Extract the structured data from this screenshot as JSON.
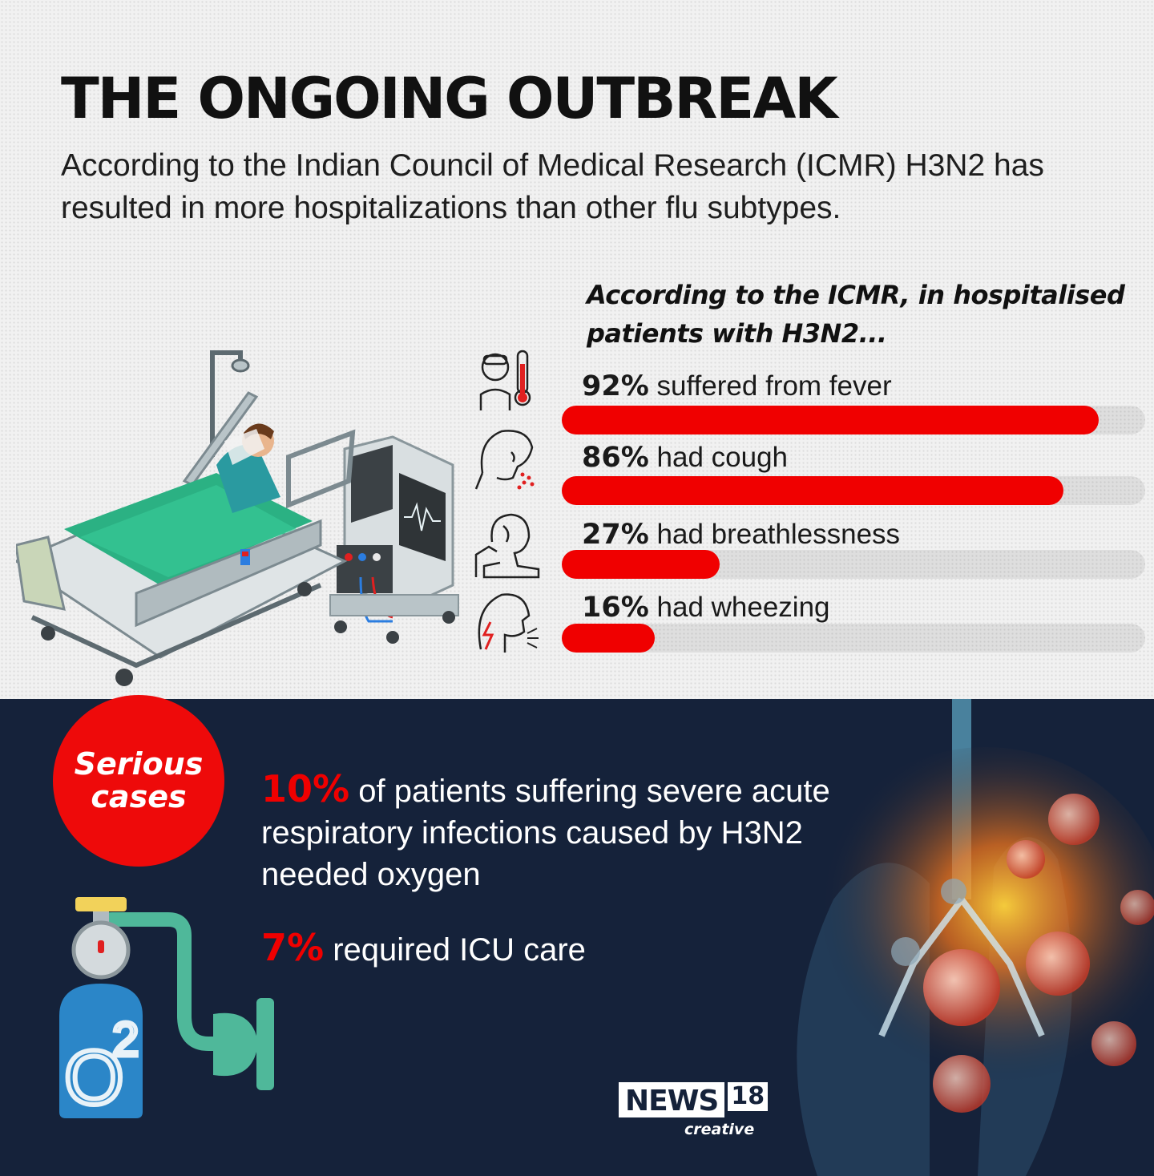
{
  "title": "THE ONGOING OUTBREAK",
  "subtitle": "According to the Indian Council of Medical Research (ICMR) H3N2 has resulted in more hospitalizations than other flu subtypes.",
  "intro": "According to the ICMR, in hospitalised patients with H3N2...",
  "icons": [
    "thermometer-icon",
    "cough-icon",
    "breathlessness-icon",
    "wheezing-icon"
  ],
  "colors": {
    "accent": "#f00000",
    "track": "#dedede",
    "dark_bg": "#15223a"
  },
  "chart_data": {
    "type": "bar",
    "orientation": "horizontal",
    "xlim": [
      0,
      100
    ],
    "categories": [
      "suffered from fever",
      "had cough",
      "had breathlessness",
      "had wheezing"
    ],
    "values": [
      92,
      86,
      27,
      16
    ],
    "value_labels": [
      "92%",
      "86%",
      "27%",
      "16%"
    ]
  },
  "serious": {
    "badge": "Serious cases",
    "stat1_value": "10%",
    "stat1_text": "of patients suffering severe acute respiratory infections caused by H3N2 needed oxygen",
    "stat2_value": "7%",
    "stat2_text": "required ICU care"
  },
  "oxygen_label": "O",
  "oxygen_sup": "2",
  "logo": {
    "news": "NEWS",
    "number": "18",
    "creative": "creative"
  }
}
